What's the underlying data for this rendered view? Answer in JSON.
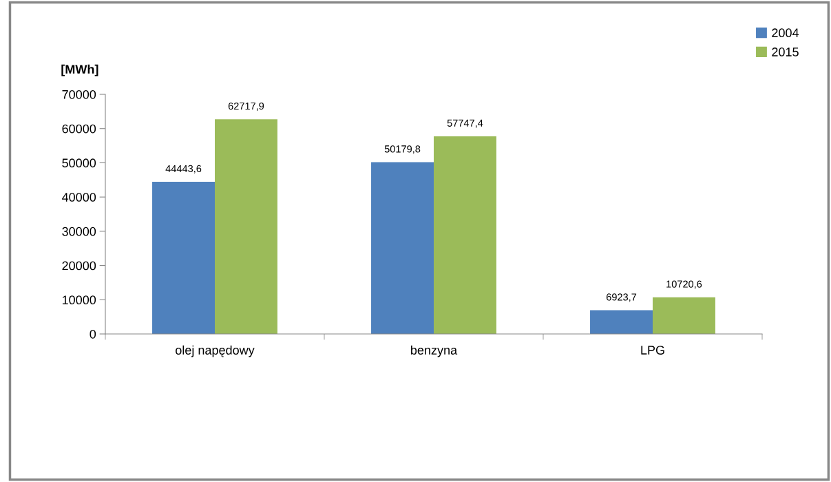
{
  "chart_data": {
    "type": "bar",
    "ylabel": "[MWh]",
    "categories": [
      "olej napędowy",
      "benzyna",
      "LPG"
    ],
    "series": [
      {
        "name": "2004",
        "color": "#4f81bd",
        "values": [
          44443.6,
          50179.8,
          6923.7
        ],
        "value_labels": [
          "44443,6",
          "50179,8",
          "6923,7"
        ]
      },
      {
        "name": "2015",
        "color": "#9bbb59",
        "values": [
          62717.9,
          57747.4,
          10720.6
        ],
        "value_labels": [
          "62717,9",
          "57747,4",
          "10720,6"
        ]
      }
    ],
    "ylim": [
      0,
      70000
    ],
    "yticks": [
      0,
      10000,
      20000,
      30000,
      40000,
      50000,
      60000,
      70000
    ],
    "grid": false,
    "legend": "top right"
  }
}
